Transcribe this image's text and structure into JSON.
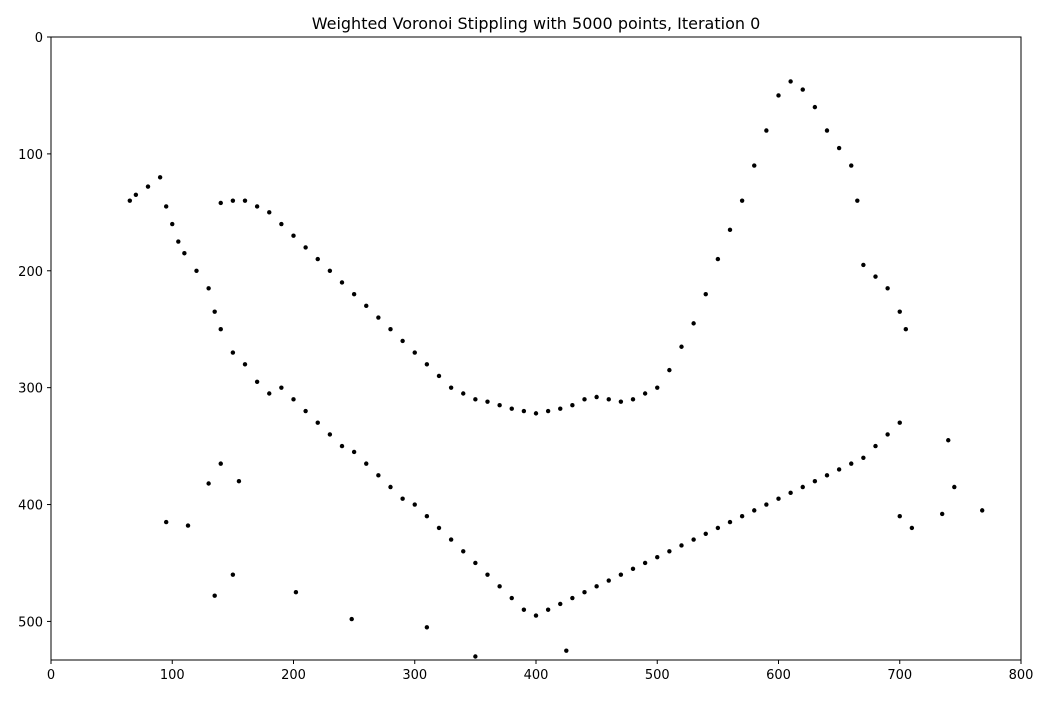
{
  "chart_data": {
    "type": "scatter",
    "title": "Weighted Voronoi Stippling with 5000 points, Iteration 0",
    "xlabel": "",
    "ylabel": "",
    "xlim": [
      0,
      800
    ],
    "ylim": [
      533,
      0
    ],
    "y_inverted": true,
    "grid": false,
    "x_ticks": [
      0,
      100,
      200,
      300,
      400,
      500,
      600,
      700,
      800
    ],
    "y_ticks": [
      0,
      100,
      200,
      300,
      400,
      500
    ],
    "marker_color": "#000000",
    "n_points": 5000,
    "series": [
      {
        "points_sample": [
          [
            65,
            140
          ],
          [
            70,
            135
          ],
          [
            80,
            128
          ],
          [
            90,
            120
          ],
          [
            95,
            145
          ],
          [
            100,
            160
          ],
          [
            105,
            175
          ],
          [
            110,
            185
          ],
          [
            120,
            200
          ],
          [
            130,
            215
          ],
          [
            135,
            235
          ],
          [
            140,
            250
          ],
          [
            150,
            270
          ],
          [
            160,
            280
          ],
          [
            170,
            295
          ],
          [
            180,
            305
          ],
          [
            190,
            300
          ],
          [
            200,
            310
          ],
          [
            210,
            320
          ],
          [
            220,
            330
          ],
          [
            230,
            340
          ],
          [
            240,
            350
          ],
          [
            250,
            355
          ],
          [
            260,
            365
          ],
          [
            270,
            375
          ],
          [
            280,
            385
          ],
          [
            290,
            395
          ],
          [
            300,
            400
          ],
          [
            310,
            410
          ],
          [
            320,
            420
          ],
          [
            330,
            430
          ],
          [
            340,
            440
          ],
          [
            350,
            450
          ],
          [
            360,
            460
          ],
          [
            370,
            470
          ],
          [
            380,
            480
          ],
          [
            390,
            490
          ],
          [
            400,
            495
          ],
          [
            410,
            490
          ],
          [
            420,
            485
          ],
          [
            430,
            480
          ],
          [
            440,
            475
          ],
          [
            450,
            470
          ],
          [
            460,
            465
          ],
          [
            470,
            460
          ],
          [
            480,
            455
          ],
          [
            490,
            450
          ],
          [
            500,
            445
          ],
          [
            510,
            440
          ],
          [
            520,
            435
          ],
          [
            530,
            430
          ],
          [
            540,
            425
          ],
          [
            550,
            420
          ],
          [
            560,
            415
          ],
          [
            570,
            410
          ],
          [
            580,
            405
          ],
          [
            590,
            400
          ],
          [
            600,
            395
          ],
          [
            610,
            390
          ],
          [
            620,
            385
          ],
          [
            630,
            380
          ],
          [
            640,
            375
          ],
          [
            650,
            370
          ],
          [
            660,
            365
          ],
          [
            670,
            360
          ],
          [
            680,
            350
          ],
          [
            690,
            340
          ],
          [
            700,
            330
          ],
          [
            705,
            250
          ],
          [
            700,
            235
          ],
          [
            690,
            215
          ],
          [
            680,
            205
          ],
          [
            670,
            195
          ],
          [
            665,
            140
          ],
          [
            660,
            110
          ],
          [
            650,
            95
          ],
          [
            640,
            80
          ],
          [
            630,
            60
          ],
          [
            620,
            45
          ],
          [
            610,
            38
          ],
          [
            600,
            50
          ],
          [
            590,
            80
          ],
          [
            580,
            110
          ],
          [
            570,
            140
          ],
          [
            560,
            165
          ],
          [
            550,
            190
          ],
          [
            540,
            220
          ],
          [
            530,
            245
          ],
          [
            520,
            265
          ],
          [
            510,
            285
          ],
          [
            500,
            300
          ],
          [
            490,
            305
          ],
          [
            480,
            310
          ],
          [
            470,
            312
          ],
          [
            460,
            310
          ],
          [
            450,
            308
          ],
          [
            440,
            310
          ],
          [
            430,
            315
          ],
          [
            420,
            318
          ],
          [
            410,
            320
          ],
          [
            400,
            322
          ],
          [
            390,
            320
          ],
          [
            380,
            318
          ],
          [
            370,
            315
          ],
          [
            360,
            312
          ],
          [
            350,
            310
          ],
          [
            340,
            305
          ],
          [
            330,
            300
          ],
          [
            320,
            290
          ],
          [
            310,
            280
          ],
          [
            300,
            270
          ],
          [
            290,
            260
          ],
          [
            280,
            250
          ],
          [
            270,
            240
          ],
          [
            260,
            230
          ],
          [
            250,
            220
          ],
          [
            240,
            210
          ],
          [
            230,
            200
          ],
          [
            220,
            190
          ],
          [
            210,
            180
          ],
          [
            200,
            170
          ],
          [
            190,
            160
          ],
          [
            180,
            150
          ],
          [
            170,
            145
          ],
          [
            160,
            140
          ],
          [
            150,
            140
          ],
          [
            140,
            142
          ],
          [
            95,
            415
          ],
          [
            113,
            418
          ],
          [
            135,
            478
          ],
          [
            150,
            460
          ],
          [
            202,
            475
          ],
          [
            248,
            498
          ],
          [
            740,
            345
          ],
          [
            745,
            385
          ],
          [
            768,
            405
          ],
          [
            735,
            408
          ],
          [
            710,
            420
          ],
          [
            700,
            410
          ],
          [
            350,
            530
          ],
          [
            425,
            525
          ],
          [
            310,
            505
          ],
          [
            130,
            382
          ],
          [
            155,
            380
          ],
          [
            140,
            365
          ]
        ]
      }
    ]
  }
}
